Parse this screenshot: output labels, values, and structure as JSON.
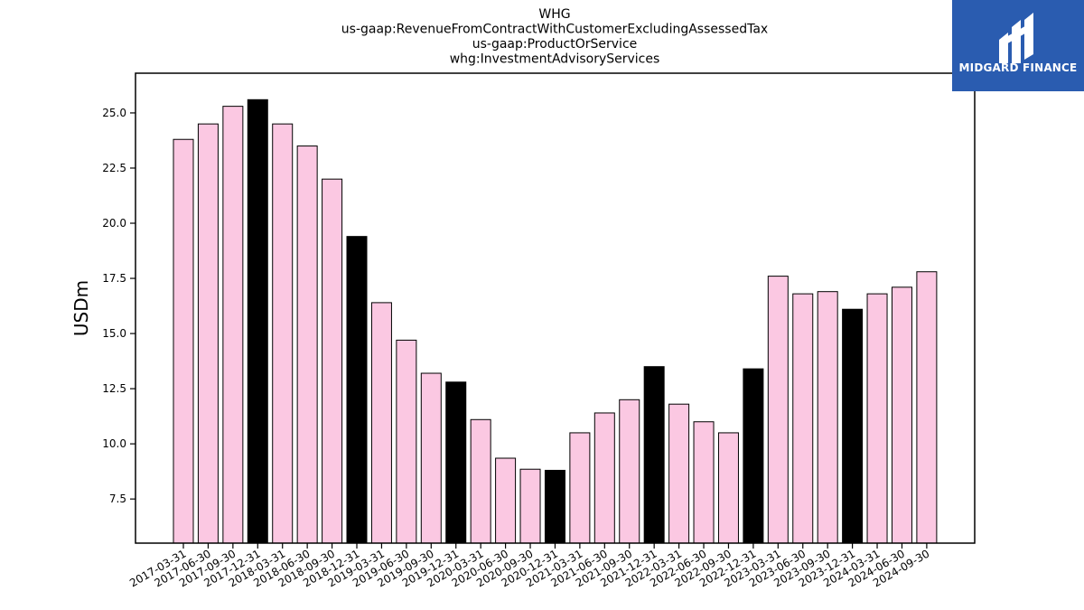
{
  "chart_data": {
    "type": "bar",
    "title_lines": [
      "WHG",
      "us-gaap:RevenueFromContractWithCustomerExcludingAssessedTax",
      "us-gaap:ProductOrService",
      "whg:InvestmentAdvisoryServices"
    ],
    "ylabel": "USDm",
    "xlabel": "",
    "ylim": [
      5.5,
      26.8
    ],
    "yticks": [
      7.5,
      10.0,
      12.5,
      15.0,
      17.5,
      20.0,
      22.5,
      25.0
    ],
    "categories": [
      "2017-03-31",
      "2017-06-30",
      "2017-09-30",
      "2017-12-31",
      "2018-03-31",
      "2018-06-30",
      "2018-09-30",
      "2018-12-31",
      "2019-03-31",
      "2019-06-30",
      "2019-09-30",
      "2019-12-31",
      "2020-03-31",
      "2020-06-30",
      "2020-09-30",
      "2020-12-31",
      "2021-03-31",
      "2021-06-30",
      "2021-09-30",
      "2021-12-31",
      "2022-03-31",
      "2022-06-30",
      "2022-09-30",
      "2022-12-31",
      "2023-03-31",
      "2023-06-30",
      "2023-09-30",
      "2023-12-31",
      "2024-03-31",
      "2024-06-30",
      "2024-09-30"
    ],
    "values": [
      23.8,
      24.5,
      25.3,
      25.6,
      24.5,
      23.5,
      22.0,
      19.4,
      16.4,
      14.7,
      13.2,
      12.8,
      11.1,
      9.35,
      8.85,
      8.8,
      10.5,
      11.4,
      12.0,
      13.5,
      11.8,
      11.0,
      10.5,
      13.4,
      17.6,
      16.8,
      16.9,
      16.1,
      16.8,
      17.1,
      17.8
    ],
    "highlight": [
      false,
      false,
      false,
      true,
      false,
      false,
      false,
      true,
      false,
      false,
      false,
      true,
      false,
      false,
      false,
      true,
      false,
      false,
      false,
      true,
      false,
      false,
      false,
      true,
      false,
      false,
      false,
      true,
      false,
      false,
      false
    ],
    "colors": {
      "normal": "#fbc8e2",
      "highlight": "#000000",
      "edge": "#000000"
    },
    "grid": false,
    "legend": "none"
  },
  "logo": {
    "text": "MIDGARD FINANCE",
    "background": "#2a5cb0",
    "icon": "midgard-m-logo-icon"
  }
}
